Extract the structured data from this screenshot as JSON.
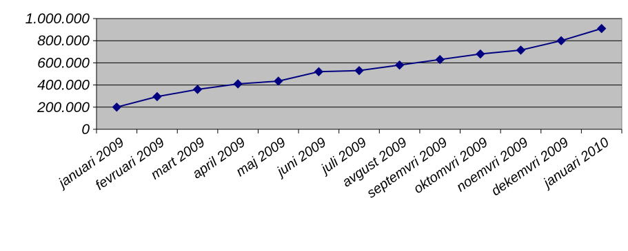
{
  "chart_data": {
    "type": "line",
    "categories": [
      "januari 2009",
      "fevruari 2009",
      "mart 2009",
      "april 2009",
      "maj 2009",
      "juni 2009",
      "juli 2009",
      "avgust 2009",
      "septemvri 2009",
      "oktomvri 2009",
      "noemvri 2009",
      "dekemvri 2009",
      "januari 2010"
    ],
    "series": [
      {
        "values": [
          200000,
          295000,
          360000,
          410000,
          435000,
          520000,
          530000,
          580000,
          630000,
          680000,
          715000,
          800000,
          910000
        ]
      }
    ],
    "yticks": [
      "0",
      "200.000",
      "400.000",
      "600.000",
      "800.000",
      "1.000.000"
    ],
    "ylim": [
      0,
      1000000
    ],
    "grid": true,
    "legend": "none",
    "colors": {
      "plot_bg": "#c0c0c0",
      "line": "#000080",
      "grid": "#000000"
    }
  }
}
